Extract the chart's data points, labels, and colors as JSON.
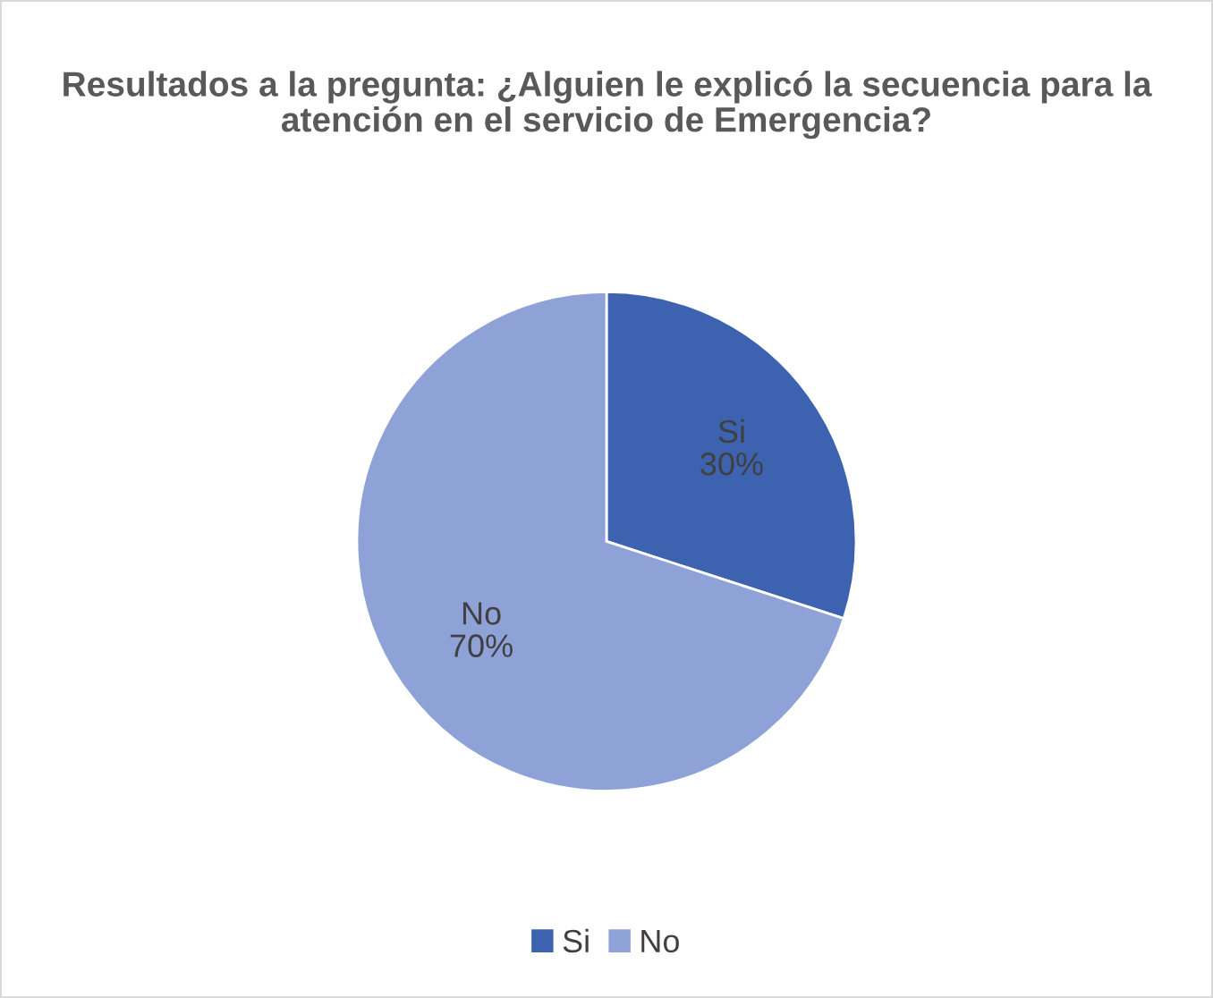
{
  "chart_data": {
    "type": "pie",
    "title": "Resultados a la pregunta: ¿Alguien le explicó la secuencia para la atención en el servicio de Emergencia?",
    "categories": [
      "Si",
      "No"
    ],
    "values": [
      30,
      70
    ],
    "colors": [
      "#3c62b0",
      "#8ea2d8"
    ],
    "value_labels": [
      "30%",
      "70%"
    ],
    "legend": "bottom"
  }
}
